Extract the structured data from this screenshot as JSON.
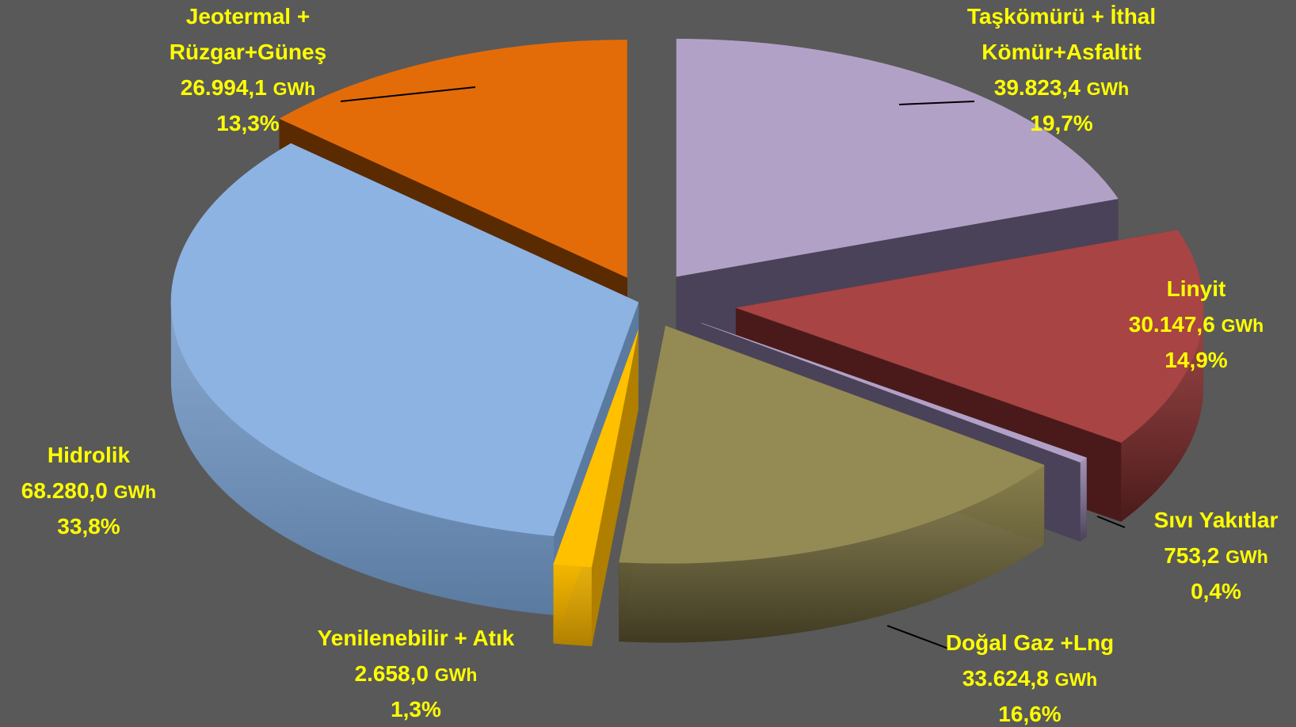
{
  "chart_data": {
    "type": "pie",
    "variant": "3d-exploded",
    "unit": "GWh",
    "start_angle_deg": 270,
    "slices": [
      {
        "name_lines": [
          "Taşkömürü + İthal",
          "Kömür+Asfaltit"
        ],
        "value": 39823.4,
        "value_text": "39.823,4",
        "unit_text": "GWh",
        "percent_text": "19,7%",
        "color": "#b2a1c7",
        "dark": "#4a4258",
        "explode": 0.35
      },
      {
        "name_lines": [
          "Linyit"
        ],
        "value": 30147.6,
        "value_text": "30.147,6",
        "unit_text": "GWh",
        "percent_text": "14,9%",
        "color": "#a84444",
        "dark": "#4a1a1a",
        "explode": 0.6
      },
      {
        "name_lines": [
          "Sıvı Yakıtlar"
        ],
        "value": 753.2,
        "value_text": "753,2",
        "unit_text": "GWh",
        "percent_text": "0,4%",
        "color": "#b2a1c7",
        "dark": "#4a4258",
        "explode": 0.45
      },
      {
        "name_lines": [
          "Doğal Gaz +Lng"
        ],
        "value": 33624.8,
        "value_text": "33.624,8",
        "unit_text": "GWh",
        "percent_text": "16,6%",
        "color": "#948a54",
        "dark": "#3f3a22",
        "explode": 0.32
      },
      {
        "name_lines": [
          "Yenilenebilir + Atık"
        ],
        "value": 2658.0,
        "value_text": "2.658,0",
        "unit_text": "GWh",
        "percent_text": "1,3%",
        "color": "#ffc000",
        "dark": "#b07f00",
        "explode": 0.35
      },
      {
        "name_lines": [
          "Hidrolik"
        ],
        "value": 68280.0,
        "value_text": "68.280,0",
        "unit_text": "GWh",
        "percent_text": "33,8%",
        "color": "#8db3e2",
        "dark": "#5a7aa0",
        "explode": 0.05
      },
      {
        "name_lines": [
          "Jeotermal +",
          "Rüzgar+Güneş"
        ],
        "value": 26994.1,
        "value_text": "26.994,1",
        "unit_text": "GWh",
        "percent_text": "13,3%",
        "color": "#e36c09",
        "dark": "#5a2a00",
        "explode": 0.3
      }
    ]
  }
}
